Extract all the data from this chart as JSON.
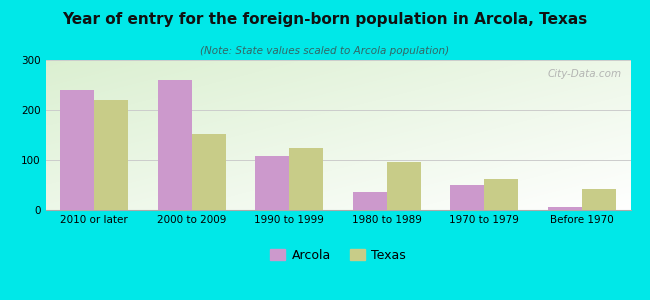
{
  "title": "Year of entry for the foreign-born population in Arcola, Texas",
  "subtitle": "(Note: State values scaled to Arcola population)",
  "categories": [
    "2010 or later",
    "2000 to 2009",
    "1990 to 1999",
    "1980 to 1989",
    "1970 to 1979",
    "Before 1970"
  ],
  "arcola_values": [
    240,
    260,
    108,
    37,
    50,
    7
  ],
  "texas_values": [
    220,
    152,
    125,
    97,
    62,
    43
  ],
  "arcola_color": "#cc99cc",
  "texas_color": "#c8cc88",
  "background_color": "#00e8e8",
  "ylim": [
    0,
    300
  ],
  "yticks": [
    0,
    100,
    200,
    300
  ],
  "bar_width": 0.35,
  "legend_arcola": "Arcola",
  "legend_texas": "Texas",
  "watermark": "City-Data.com",
  "title_fontsize": 11,
  "subtitle_fontsize": 7.5,
  "tick_fontsize": 7.5
}
